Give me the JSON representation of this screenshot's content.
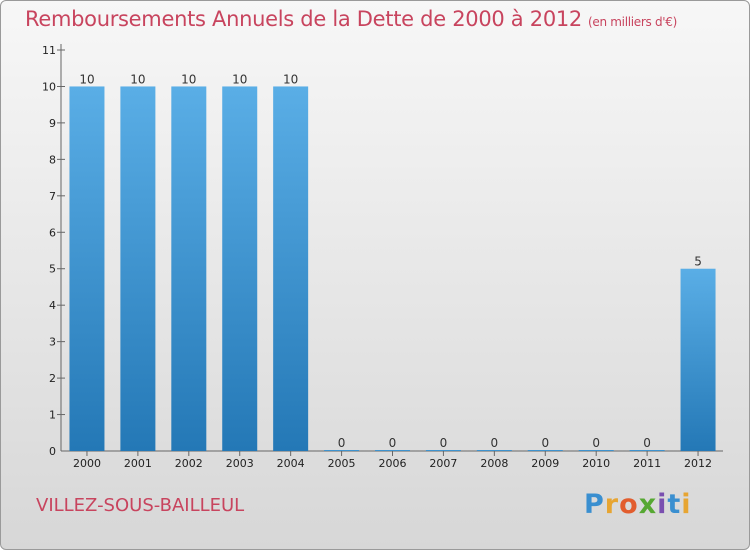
{
  "header": {
    "title": "Remboursements Annuels de la Dette de 2000 à 2012",
    "subtitle": "(en milliers d'€)"
  },
  "footer": {
    "commune": "VILLEZ-SOUS-BAILLEUL",
    "logo_letters": [
      "P",
      "r",
      "o",
      "x",
      "i",
      "t",
      "i"
    ],
    "logo_colors": [
      "#3a8fd0",
      "#e7a532",
      "#e25d2e",
      "#56a832",
      "#7a4fb0",
      "#3a8fd0",
      "#e7a532"
    ]
  },
  "colors": {
    "title": "#c8445e",
    "bar_top": "#5aaee6",
    "bar_bottom": "#2478b6"
  },
  "chart_data": {
    "type": "bar",
    "title": "Remboursements Annuels de la Dette de 2000 à 2012",
    "categories": [
      "2000",
      "2001",
      "2002",
      "2003",
      "2004",
      "2005",
      "2006",
      "2007",
      "2008",
      "2009",
      "2010",
      "2011",
      "2012"
    ],
    "values": [
      10,
      10,
      10,
      10,
      10,
      0,
      0,
      0,
      0,
      0,
      0,
      0,
      5
    ],
    "data_labels": [
      "10",
      "10",
      "10",
      "10",
      "10",
      "0",
      "0",
      "0",
      "0",
      "0",
      "0",
      "0",
      "5"
    ],
    "ylim": [
      0,
      11
    ],
    "yticks": [
      "1",
      "2",
      "3",
      "4",
      "5",
      "6",
      "7",
      "8",
      "9",
      "10",
      "11"
    ],
    "xlabel": "",
    "ylabel": "",
    "grid": false
  }
}
